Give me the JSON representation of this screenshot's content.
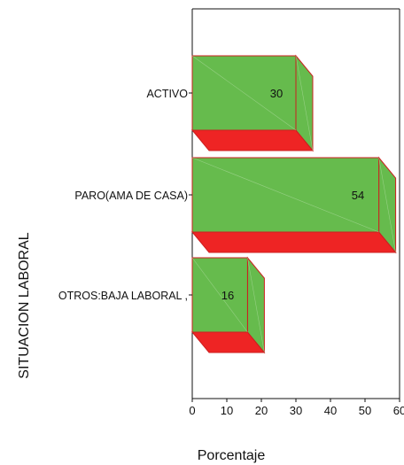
{
  "chart_data": {
    "type": "bar",
    "orientation": "horizontal",
    "categories": [
      "ACTIVO",
      "PARO(AMA DE CASA)",
      "OTROS:BAJA LABORAL ,"
    ],
    "values": [
      30,
      54,
      16
    ],
    "xlabel": "Porcentaje",
    "ylabel": "SITUACION LABORAL",
    "xlim": [
      0,
      60
    ],
    "xticks": [
      0,
      10,
      20,
      30,
      40,
      50,
      60
    ],
    "xtick_labels": [
      "0",
      "10",
      "20",
      "30",
      "40",
      "50",
      "60"
    ],
    "data_labels": [
      "30",
      "54",
      "16"
    ],
    "grid": false,
    "three_d": true,
    "colors": {
      "front_face": "#66bb4d",
      "side_face": "#66bb4d",
      "bottom_face": "#ee2424",
      "edge": "#cc1f1f",
      "axis": "#111111",
      "text": "#111111"
    }
  }
}
